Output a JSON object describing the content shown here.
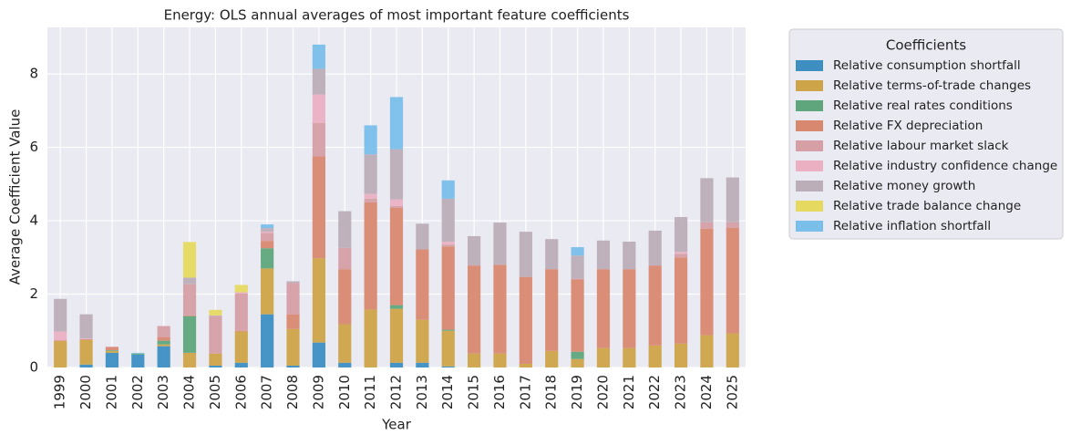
{
  "chart_data": {
    "type": "stacked_bar",
    "title": "Energy: OLS annual averages of most important feature coefficients",
    "x_label": "Year",
    "y_label": "Average Coefficient Value",
    "legend_title": "Coefficients",
    "legend": "outside upper right",
    "grid": true,
    "categories": [
      "1999",
      "2000",
      "2001",
      "2002",
      "2003",
      "2004",
      "2005",
      "2006",
      "2007",
      "2008",
      "2009",
      "2010",
      "2011",
      "2012",
      "2013",
      "2014",
      "2015",
      "2016",
      "2017",
      "2018",
      "2019",
      "2020",
      "2021",
      "2022",
      "2023",
      "2024",
      "2025"
    ],
    "ylim": [
      0,
      9.27
    ],
    "yticks": [
      0,
      2,
      4,
      6,
      8
    ],
    "series": [
      {
        "name": "Relative consumption shortfall",
        "color": "#3d8fc2",
        "values": [
          0,
          0.08,
          0.4,
          0.35,
          0.58,
          0,
          0.05,
          0.13,
          1.45,
          0.05,
          0.68,
          0.13,
          0,
          0.13,
          0.13,
          0.03,
          0,
          0,
          0,
          0,
          0,
          0,
          0,
          0,
          0,
          0,
          0
        ]
      },
      {
        "name": "Relative terms-of-trade changes",
        "color": "#cda448",
        "values": [
          0.72,
          0.67,
          0.05,
          0,
          0.05,
          0.4,
          0.33,
          0.85,
          1.25,
          1.0,
          2.3,
          1.05,
          1.58,
          1.47,
          1.17,
          0.97,
          0.38,
          0.38,
          0.1,
          0.45,
          0.23,
          0.53,
          0.53,
          0.6,
          0.65,
          0.88,
          0.93
        ]
      },
      {
        "name": "Relative real rates conditions",
        "color": "#5fa67c",
        "values": [
          0,
          0,
          0.02,
          0.03,
          0.1,
          1.0,
          0,
          0,
          0.55,
          0,
          0,
          0,
          0,
          0.1,
          0,
          0.03,
          0,
          0,
          0,
          0,
          0.2,
          0,
          0,
          0,
          0,
          0,
          0
        ]
      },
      {
        "name": "Relative FX depreciation",
        "color": "#d98870",
        "values": [
          0.02,
          0.02,
          0.08,
          0,
          0.1,
          0.02,
          0,
          0.02,
          0.2,
          0.4,
          2.78,
          1.5,
          2.92,
          2.65,
          1.92,
          2.27,
          2.4,
          2.42,
          2.37,
          2.23,
          1.97,
          2.15,
          2.15,
          2.18,
          2.35,
          2.9,
          2.88
        ]
      },
      {
        "name": "Relative labour market slack",
        "color": "#d69fa5",
        "values": [
          0,
          0,
          0.02,
          0,
          0.3,
          0.85,
          1.02,
          1.02,
          0.22,
          0.85,
          0.9,
          0.58,
          0.1,
          0.05,
          0,
          0.05,
          0,
          0,
          0,
          0,
          0.02,
          0,
          0,
          0,
          0.1,
          0.18,
          0.15
        ]
      },
      {
        "name": "Relative industry confidence change",
        "color": "#ebb1c3",
        "values": [
          0.24,
          0.02,
          0,
          0,
          0,
          0,
          0,
          0.03,
          0.03,
          0,
          0.78,
          0,
          0.13,
          0.18,
          0,
          0.08,
          0,
          0,
          0,
          0,
          0,
          0,
          0,
          0,
          0.05,
          0,
          0
        ]
      },
      {
        "name": "Relative money growth",
        "color": "#bcaeb8",
        "values": [
          0.89,
          0.66,
          0,
          0,
          0,
          0.18,
          0.02,
          0,
          0.1,
          0.05,
          0.7,
          1.0,
          1.08,
          1.37,
          0.7,
          1.17,
          0.8,
          1.15,
          1.23,
          0.82,
          0.63,
          0.78,
          0.75,
          0.95,
          0.95,
          1.2,
          1.22
        ]
      },
      {
        "name": "Relative trade balance change",
        "color": "#e6d960",
        "values": [
          0,
          0,
          0,
          0,
          0,
          0.97,
          0.15,
          0.2,
          0,
          0,
          0,
          0,
          0,
          0,
          0,
          0,
          0,
          0,
          0,
          0,
          0,
          0,
          0,
          0,
          0,
          0,
          0
        ]
      },
      {
        "name": "Relative inflation shortfall",
        "color": "#7abfea",
        "values": [
          0,
          0,
          0,
          0.02,
          0,
          0,
          0,
          0,
          0.1,
          0,
          0.66,
          0,
          0.79,
          1.42,
          0,
          0.5,
          0,
          0,
          0,
          0,
          0.23,
          0,
          0,
          0,
          0,
          0,
          0
        ]
      }
    ]
  }
}
